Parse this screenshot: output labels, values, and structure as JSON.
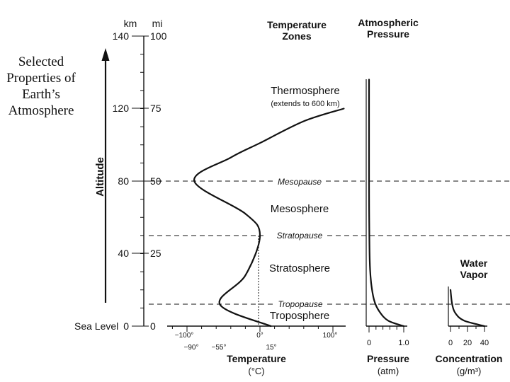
{
  "title": [
    "Selected",
    "Properties of",
    "Earth’s",
    "Atmosphere"
  ],
  "altitude_axis": {
    "label": "Altitude",
    "km_header": "km",
    "mi_header": "mi",
    "km_ticks": [
      "140",
      "120",
      "80",
      "40",
      "0"
    ],
    "mi_ticks": [
      "100",
      "75",
      "50",
      "25",
      "0"
    ],
    "sea_level_label": "Sea Level"
  },
  "headers": {
    "temperature_zones": [
      "Temperature",
      "Zones"
    ],
    "atmospheric_pressure": [
      "Atmospheric",
      "Pressure"
    ],
    "water_vapor": [
      "Water",
      "Vapor"
    ]
  },
  "zones": {
    "thermosphere": "Thermosphere",
    "thermosphere_note": "(extends to 600 km)",
    "mesosphere": "Mesosphere",
    "stratosphere": "Stratosphere",
    "troposphere": "Troposphere"
  },
  "boundaries": {
    "mesopause": "Mesopause",
    "stratopause": "Stratopause",
    "tropopause": "Tropopause"
  },
  "temperature_axis": {
    "top_ticks": [
      "−100°",
      "0°",
      "100°"
    ],
    "bottom_ticks": [
      "−90°",
      "−55°",
      "15°"
    ],
    "label": "Temperature",
    "unit": "(°C)"
  },
  "pressure_axis": {
    "ticks": [
      "0",
      "1.0"
    ],
    "label": "Pressure",
    "unit": "(atm)"
  },
  "vapor_axis": {
    "ticks": [
      "0",
      "20",
      "40"
    ],
    "label": "Concentration",
    "unit": "(g/m³)"
  },
  "chart_data": [
    {
      "type": "line",
      "name_key": "temperature_profile",
      "x_unit": "°C",
      "y_unit": "km",
      "points": [
        [
          15,
          0
        ],
        [
          -55,
          12
        ],
        [
          -20,
          28
        ],
        [
          0,
          50
        ],
        [
          -20,
          62
        ],
        [
          -90,
          80
        ],
        [
          -40,
          93
        ],
        [
          0,
          101
        ],
        [
          60,
          113
        ],
        [
          115,
          120
        ]
      ]
    },
    {
      "type": "line",
      "name_key": "pressure_profile",
      "x_unit": "atm",
      "y_unit": "km",
      "points": [
        [
          1.0,
          0
        ],
        [
          0.55,
          3
        ],
        [
          0.3,
          8
        ],
        [
          0.15,
          14
        ],
        [
          0.06,
          24
        ],
        [
          0.02,
          36
        ],
        [
          0.005,
          60
        ],
        [
          0.0,
          80
        ],
        [
          0.0,
          136
        ]
      ]
    },
    {
      "type": "line",
      "name_key": "water_vapor_profile",
      "x_unit": "g/m³",
      "y_unit": "km",
      "points": [
        [
          40,
          0
        ],
        [
          16,
          3
        ],
        [
          6,
          7
        ],
        [
          2,
          12
        ],
        [
          0,
          20
        ]
      ]
    }
  ]
}
